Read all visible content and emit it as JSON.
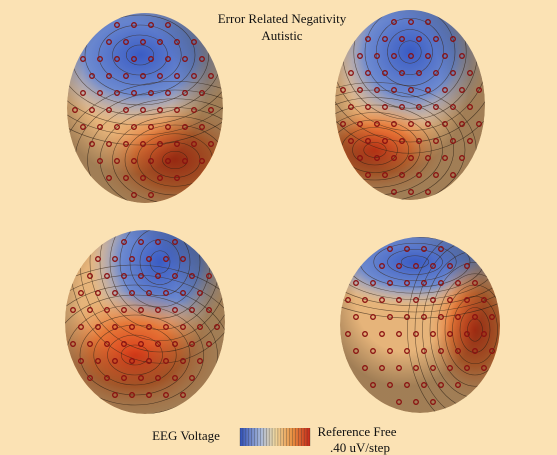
{
  "title": "Error Related Negativity",
  "subtitle": "Autistic",
  "legend": {
    "label": "EEG Voltage",
    "reference": "Reference Free",
    "scale": ".40 uV/step"
  }
}
